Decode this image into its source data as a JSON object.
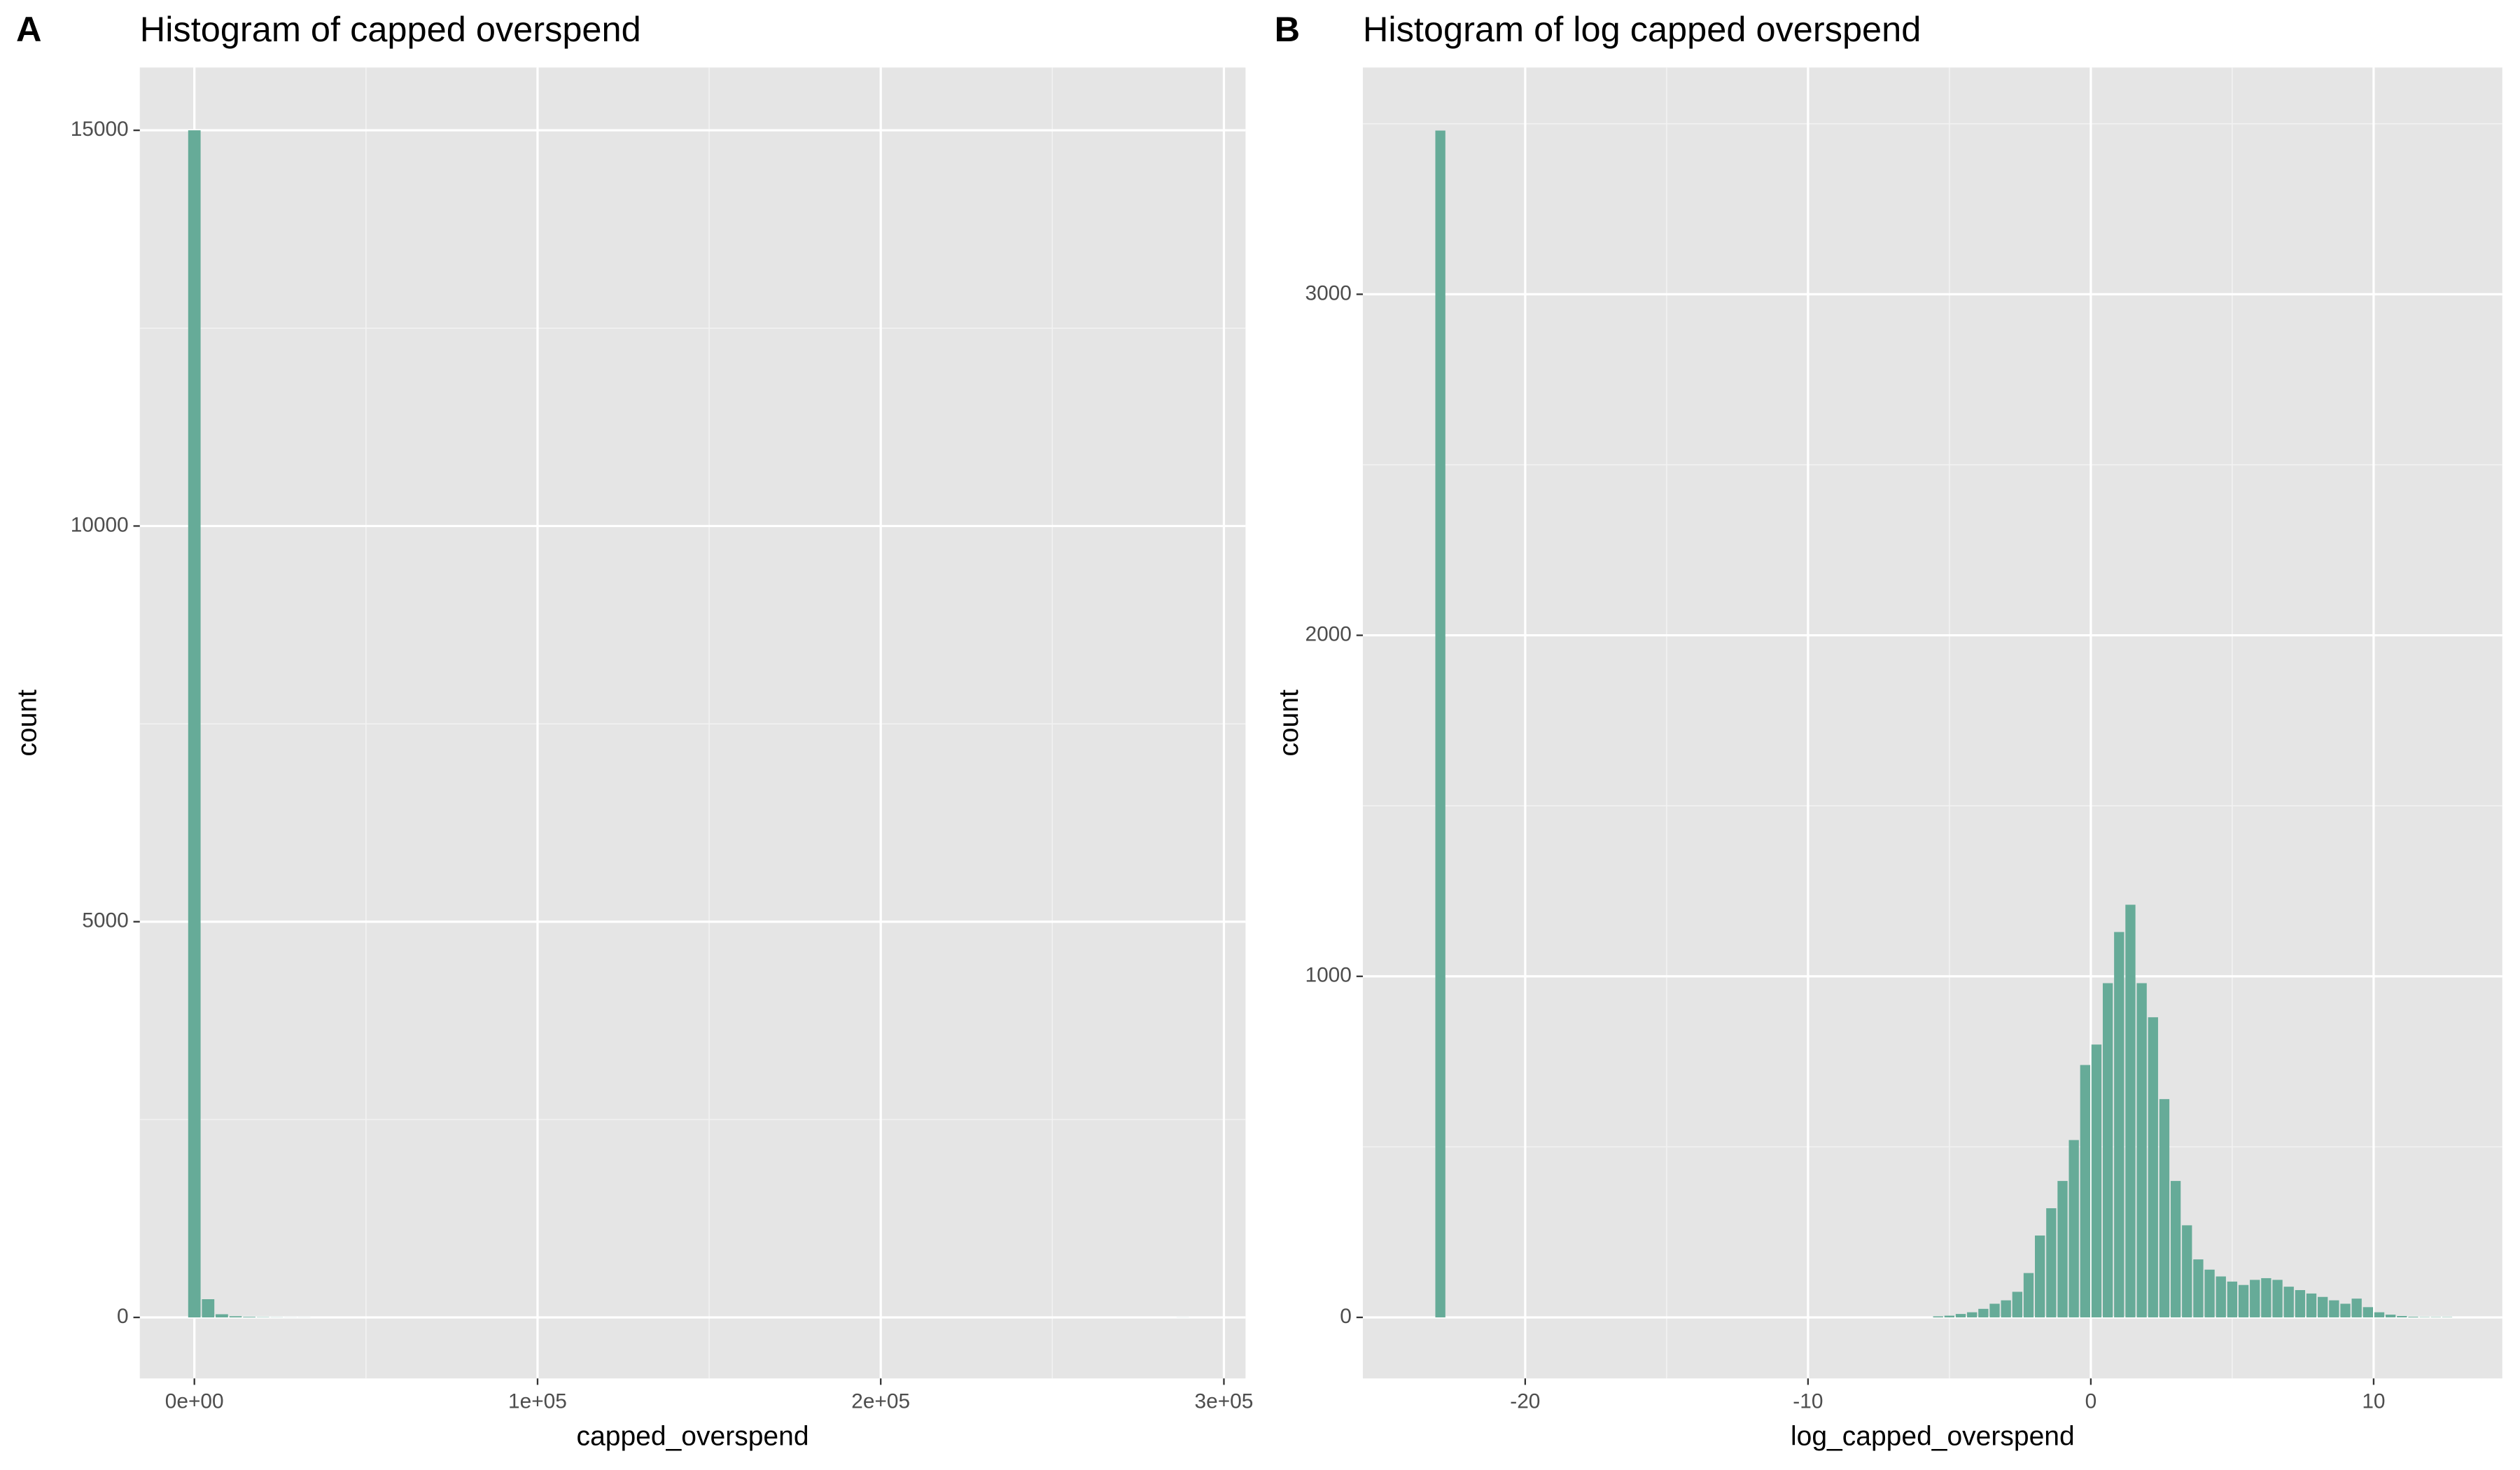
{
  "chart_data": [
    {
      "type": "histogram",
      "tag": "A",
      "title": "Histogram of capped overspend",
      "x_label": "capped_overspend",
      "y_label": "count",
      "color": "#66ab98",
      "grid": true,
      "bins": [
        -2000,
        2000,
        6000,
        10000,
        14000,
        18000,
        22000,
        26000,
        30000,
        34000,
        38000,
        42000,
        46000,
        50000,
        54000,
        58000,
        62000,
        66000,
        70000,
        74000,
        78000,
        82000,
        86000,
        90000,
        94000,
        98000,
        102000,
        106000,
        110000,
        114000,
        118000,
        122000,
        126000,
        130000,
        134000,
        138000,
        142000,
        146000,
        150000,
        154000,
        158000,
        162000,
        166000,
        170000,
        174000,
        178000,
        182000,
        186000,
        190000,
        194000,
        198000,
        202000,
        206000,
        210000,
        214000,
        218000,
        222000,
        226000,
        230000,
        234000,
        238000,
        242000,
        246000,
        250000,
        254000,
        258000,
        262000,
        266000,
        270000,
        274000,
        278000,
        282000,
        286000,
        290000
      ],
      "values": [
        15000,
        230,
        40,
        15,
        8,
        4,
        2,
        1,
        1,
        0,
        0,
        0,
        0,
        0,
        0,
        0,
        0,
        0,
        0,
        0,
        0,
        0,
        0,
        0,
        0,
        0,
        0,
        0,
        0,
        0,
        0,
        0,
        0,
        0,
        0,
        0,
        0,
        0,
        0,
        0,
        0,
        0,
        0,
        0,
        0,
        0,
        0,
        0,
        0,
        0,
        0,
        0,
        0,
        0,
        0,
        0,
        0,
        0,
        0,
        0,
        0,
        0,
        0,
        0,
        0,
        0,
        0,
        0,
        0,
        0,
        0,
        0,
        1
      ],
      "xlim": [
        -15900,
        306300
      ],
      "ylim": [
        -771,
        15794
      ],
      "xticks": [
        {
          "value": 0,
          "label": "0e+00"
        },
        {
          "value": 100000,
          "label": "1e+05"
        },
        {
          "value": 200000,
          "label": "2e+05"
        },
        {
          "value": 300000,
          "label": "3e+05"
        }
      ],
      "xminor": [
        50000,
        150000,
        250000
      ],
      "yticks": [
        0,
        5000,
        10000,
        15000
      ],
      "yminor": [
        2500,
        7500,
        12500
      ]
    },
    {
      "type": "histogram",
      "tag": "B",
      "title": "Histogram of log capped overspend",
      "x_label": "log_capped_overspend",
      "y_label": "count",
      "color": "#66ab98",
      "grid": true,
      "bins": [
        -23.2,
        -22.8,
        -22.4,
        -22,
        -21.6,
        -21.2,
        -20.8,
        -20.4,
        -20,
        -19.6,
        -19.2,
        -18.8,
        -18.4,
        -18,
        -17.6,
        -17.2,
        -16.8,
        -16.4,
        -16,
        -15.6,
        -15.2,
        -14.8,
        -14.4,
        -14,
        -13.6,
        -13.2,
        -12.8,
        -12.4,
        -12,
        -11.6,
        -11.2,
        -10.8,
        -10.4,
        -10,
        -9.6,
        -9.2,
        -8.8,
        -8.4,
        -8,
        -7.6,
        -7.2,
        -6.8,
        -6.4,
        -6,
        -5.6,
        -5.2,
        -4.8,
        -4.4,
        -4,
        -3.6,
        -3.2,
        -2.8,
        -2.4,
        -2,
        -1.6,
        -1.2,
        -0.8,
        -0.4,
        0,
        0.4,
        0.8,
        1.2,
        1.6,
        2,
        2.4,
        2.8,
        3.2,
        3.6,
        4,
        4.4,
        4.8,
        5.2,
        5.6,
        6,
        6.4,
        6.8,
        7.2,
        7.6,
        8,
        8.4,
        8.8,
        9.2,
        9.6,
        10,
        10.4,
        10.8,
        11.2,
        11.6,
        12,
        12.4,
        12.8
      ],
      "values": [
        3480,
        0,
        0,
        0,
        0,
        0,
        0,
        0,
        0,
        0,
        0,
        0,
        0,
        0,
        0,
        0,
        0,
        0,
        0,
        0,
        0,
        0,
        0,
        0,
        0,
        0,
        0,
        0,
        0,
        0,
        0,
        0,
        0,
        0,
        0,
        0,
        0,
        0,
        0,
        0,
        0,
        0,
        0,
        0,
        3,
        5,
        10,
        15,
        25,
        40,
        50,
        75,
        130,
        240,
        320,
        400,
        520,
        740,
        800,
        980,
        1130,
        1210,
        980,
        880,
        640,
        400,
        270,
        170,
        140,
        120,
        105,
        95,
        110,
        115,
        110,
        90,
        80,
        70,
        60,
        50,
        40,
        55,
        30,
        15,
        8,
        4,
        2,
        1,
        1,
        1
      ],
      "xlim": [
        -25.74,
        14.55
      ],
      "ylim": [
        -179,
        3665
      ],
      "xticks": [
        -20,
        -10,
        0,
        10
      ],
      "xminor": [
        -15,
        -5,
        5
      ],
      "yticks": [
        0,
        1000,
        2000,
        3000
      ],
      "yminor": [
        500,
        1500,
        2500,
        3500
      ]
    }
  ]
}
